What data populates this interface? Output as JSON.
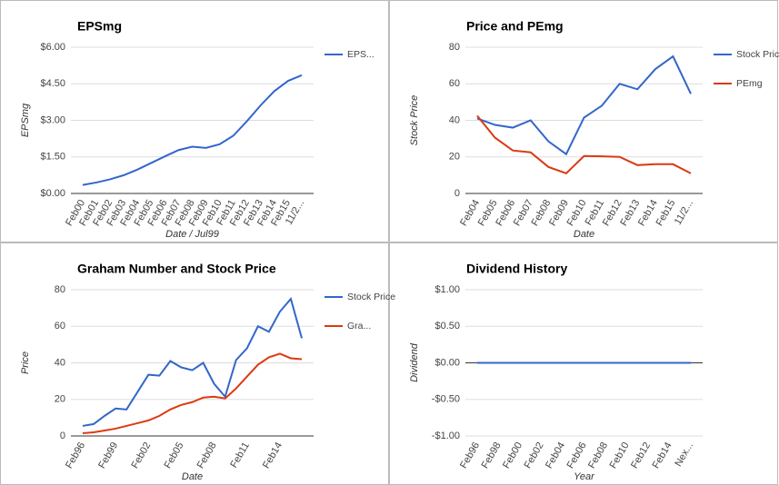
{
  "chart_data": [
    {
      "type": "line",
      "title": "EPSmg",
      "y_label": "EPSmg",
      "x_label": "Date / Jul99",
      "categories": [
        "Feb00",
        "Feb01",
        "Feb02",
        "Feb03",
        "Feb04",
        "Feb05",
        "Feb06",
        "Feb07",
        "Feb08",
        "Feb09",
        "Feb10",
        "Feb11",
        "Feb12",
        "Feb13",
        "Feb14",
        "Feb15",
        "11/2..."
      ],
      "series": [
        {
          "name": "EPS...",
          "color": "#3366cc",
          "values": [
            0.35,
            0.45,
            0.58,
            0.75,
            0.98,
            1.25,
            1.52,
            1.78,
            1.92,
            1.87,
            2.02,
            2.37,
            2.97,
            3.62,
            4.2,
            4.62,
            4.85
          ]
        }
      ],
      "ylim": [
        0,
        6
      ],
      "yticks": [
        {
          "value": 0,
          "label": "$0.00"
        },
        {
          "value": 1.5,
          "label": "$1.50"
        },
        {
          "value": 3,
          "label": "$3.00"
        },
        {
          "value": 4.5,
          "label": "$4.50"
        },
        {
          "value": 6,
          "label": "$6.00"
        }
      ],
      "grid": true,
      "legend": "right"
    },
    {
      "type": "line",
      "title": "Price and PEmg",
      "y_label": "Stock Price",
      "x_label": "Date",
      "categories": [
        "Feb04",
        "Feb05",
        "Feb06",
        "Feb07",
        "Feb08",
        "Feb09",
        "Feb10",
        "Feb11",
        "Feb12",
        "Feb13",
        "Feb14",
        "Feb15",
        "11/2..."
      ],
      "series": [
        {
          "name": "Stock Price",
          "color": "#3366cc",
          "values": [
            41,
            37.5,
            36,
            40,
            28.5,
            21.5,
            41.5,
            48,
            60,
            57,
            68,
            75,
            54.5
          ]
        },
        {
          "name": "PEmg",
          "color": "#dc3912",
          "values": [
            42.5,
            30.5,
            23.5,
            22.5,
            14.5,
            11,
            20.5,
            20.3,
            20,
            15.5,
            16,
            16,
            11
          ]
        }
      ],
      "ylim": [
        0,
        80
      ],
      "yticks": [
        0,
        20,
        40,
        60,
        80
      ],
      "grid": true,
      "legend": "right"
    },
    {
      "type": "line",
      "title": "Graham Number and Stock Price",
      "y_label": "Price",
      "x_label": "Date",
      "categories": [
        "Feb96",
        null,
        null,
        "Feb99",
        null,
        null,
        "Feb02",
        null,
        null,
        "Feb05",
        null,
        null,
        "Feb08",
        null,
        null,
        "Feb11",
        null,
        null,
        "Feb14",
        null,
        null
      ],
      "series": [
        {
          "name": "Stock Price",
          "color": "#3366cc",
          "values": [
            5.5,
            6.5,
            11,
            15,
            14.5,
            24,
            33.5,
            33,
            41,
            37.5,
            36,
            40,
            28.5,
            21.5,
            41.5,
            48,
            60,
            57,
            68,
            75,
            53.5
          ]
        },
        {
          "name": "Gra...",
          "color": "#dc3912",
          "values": [
            1.5,
            2,
            3,
            4,
            5.5,
            7,
            8.5,
            11,
            14.5,
            17,
            18.5,
            21,
            21.5,
            20.5,
            26,
            32.5,
            39,
            43,
            45,
            42.5,
            42
          ]
        }
      ],
      "ylim": [
        0,
        80
      ],
      "yticks": [
        0,
        20,
        40,
        60,
        80
      ],
      "grid": true,
      "legend": "right"
    },
    {
      "type": "line",
      "title": "Dividend History",
      "y_label": "Dividend",
      "x_label": "Year",
      "categories": [
        "Feb96",
        "Feb98",
        "Feb00",
        "Feb02",
        "Feb04",
        "Feb06",
        "Feb08",
        "Feb10",
        "Feb12",
        "Feb14",
        "Nex..."
      ],
      "series": [
        {
          "color": "#3366cc",
          "values": [
            0,
            0,
            0,
            0,
            0,
            0,
            0,
            0,
            0,
            0,
            0
          ]
        }
      ],
      "ylim": [
        -1,
        1
      ],
      "yticks": [
        {
          "value": -1,
          "label": "-$1.00"
        },
        {
          "value": -0.5,
          "label": "-$0.50"
        },
        {
          "value": 0,
          "label": "$0.00"
        },
        {
          "value": 0.5,
          "label": "$0.50"
        },
        {
          "value": 1,
          "label": "$1.00"
        }
      ],
      "grid": true
    }
  ]
}
